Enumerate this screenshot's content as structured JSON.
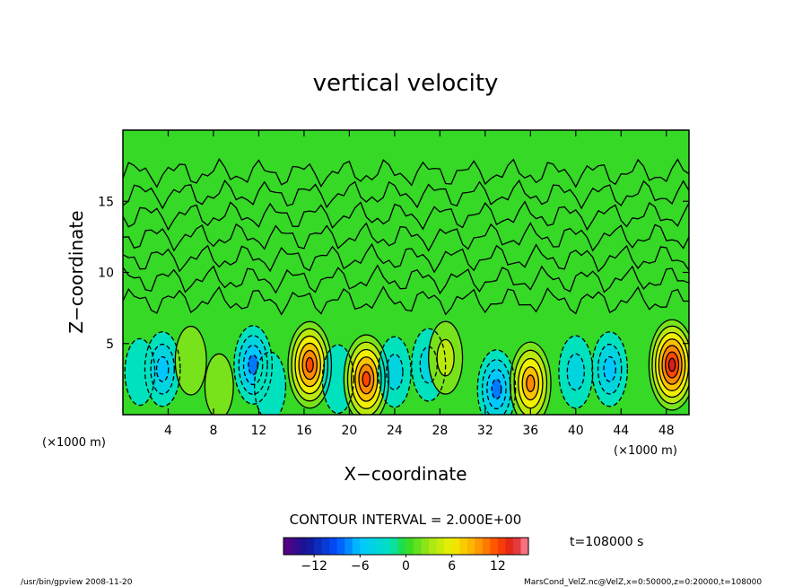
{
  "chart_data": {
    "type": "heatmap",
    "title": "vertical velocity",
    "xlabel": "X−coordinate",
    "ylabel": "Z−coordinate",
    "x_units_left": "(×1000 m)",
    "x_units_right": "(×1000 m)",
    "xlim": [
      0,
      50
    ],
    "ylim": [
      0,
      20
    ],
    "x_ticks": [
      4,
      8,
      12,
      16,
      20,
      24,
      28,
      32,
      36,
      40,
      44,
      48
    ],
    "y_ticks": [
      5,
      10,
      15
    ],
    "contour_interval_label": "CONTOUR INTERVAL = 2.000E+00",
    "time_label": "t=108000 s",
    "colorbar": {
      "min": -16,
      "max": 16,
      "tick_labels": [
        "−12",
        "−6",
        "0",
        "6",
        "12"
      ],
      "tick_values": [
        -12,
        -6,
        0,
        6,
        12
      ]
    },
    "cells": [
      {
        "x": 1.5,
        "z": 3.0,
        "v": -2
      },
      {
        "x": 3.5,
        "z": 3.2,
        "v": -6
      },
      {
        "x": 6.0,
        "z": 3.8,
        "v": 3
      },
      {
        "x": 8.5,
        "z": 2.0,
        "v": 1
      },
      {
        "x": 11.5,
        "z": 3.5,
        "v": -8
      },
      {
        "x": 13.0,
        "z": 2.0,
        "v": -3
      },
      {
        "x": 16.5,
        "z": 3.5,
        "v": 12
      },
      {
        "x": 19.0,
        "z": 2.5,
        "v": -3
      },
      {
        "x": 21.5,
        "z": 2.5,
        "v": 13
      },
      {
        "x": 24.0,
        "z": 3.0,
        "v": -4
      },
      {
        "x": 27.0,
        "z": 3.5,
        "v": -5
      },
      {
        "x": 28.5,
        "z": 4.0,
        "v": 5
      },
      {
        "x": 33.0,
        "z": 1.8,
        "v": -8
      },
      {
        "x": 36.0,
        "z": 2.2,
        "v": 10
      },
      {
        "x": 40.0,
        "z": 3.0,
        "v": -5
      },
      {
        "x": 43.0,
        "z": 3.2,
        "v": -6
      },
      {
        "x": 48.5,
        "z": 3.5,
        "v": 14
      }
    ]
  },
  "footer": {
    "left": "/usr/bin/gpview 2008-11-20",
    "right": "MarsCond_VelZ.nc@VelZ,x=0:50000,z=0:20000,t=108000"
  }
}
